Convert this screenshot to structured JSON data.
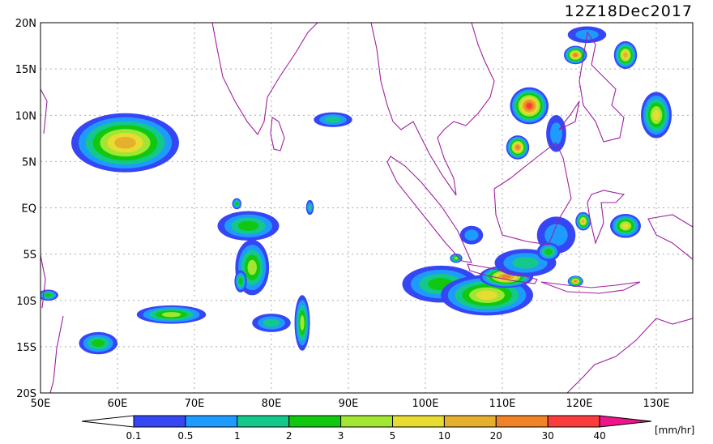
{
  "title": "12Z18Dec2017",
  "lat_labels": [
    "20N",
    "15N",
    "10N",
    "5N",
    "EQ",
    "5S",
    "10S",
    "15S",
    "20S"
  ],
  "lon_labels": [
    "50E",
    "60E",
    "70E",
    "80E",
    "90E",
    "100E",
    "110E",
    "120E",
    "130E"
  ],
  "colorbar": {
    "labels": [
      "0.1",
      "0.5",
      "1",
      "2",
      "3",
      "5",
      "10",
      "20",
      "30",
      "40"
    ],
    "colors": [
      "#ffffff",
      "#3646f5",
      "#1e9bff",
      "#14c88c",
      "#0fc80f",
      "#a0e632",
      "#e6dc32",
      "#e6af2d",
      "#f08228",
      "#fa3c3c",
      "#f0148c"
    ],
    "unit": "[mm/hr]"
  }
}
